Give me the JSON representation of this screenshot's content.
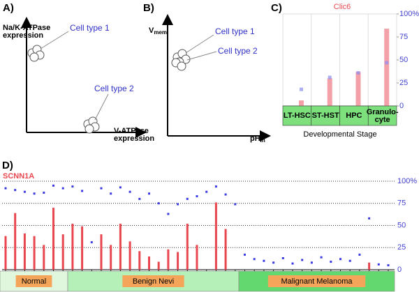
{
  "diagrams": [
    {
      "panel_label": "A)",
      "y_label": "Na/K-ATPase expression",
      "x_label": "V-ATPase expression",
      "cells": [
        "Cell type 1",
        "Cell type 2"
      ]
    },
    {
      "panel_label": "B)",
      "y_label": {
        "base": "V",
        "sub": "mem"
      },
      "x_label": {
        "base": "pH",
        "sub": "in"
      },
      "cells": [
        "Cell type 1",
        "Cell type 2"
      ]
    }
  ],
  "chart_data": [
    {
      "type": "bar",
      "panel_label": "C)",
      "title": "Clic6",
      "x_label": "Developmental Stage",
      "categories": [
        "LT-HSC",
        "ST-HST",
        "HPC",
        "Granulo-\ncyte"
      ],
      "series": [
        {
          "color": "#f4a0a8",
          "values": [
            6,
            30,
            37,
            84
          ]
        },
        {
          "color": "#8c8cf0",
          "values": [
            18,
            31,
            36,
            47
          ]
        }
      ],
      "ylim": [
        0,
        100
      ],
      "yticks": [
        0,
        25,
        50,
        75,
        {
          "value": 100,
          "label": "100%"
        }
      ]
    },
    {
      "type": "bar",
      "panel_label": "D)",
      "title": "SCNN1A",
      "categories": [
        null,
        null,
        null,
        null,
        null,
        null,
        null,
        null,
        null,
        null,
        null,
        null,
        null,
        null,
        null,
        null,
        null,
        null,
        null,
        null,
        null,
        null,
        null,
        null,
        null,
        null,
        null,
        null,
        null,
        null,
        null,
        null,
        null,
        null,
        null,
        null,
        null,
        null,
        null,
        null,
        null
      ],
      "groups": [
        "Normal",
        "Benign Nevi",
        "Malignant Melanoma"
      ],
      "series": [
        {
          "color": "#e8474f",
          "values": [
            38,
            64,
            41,
            38,
            28,
            70,
            40,
            52,
            49,
            0,
            40,
            28,
            52,
            32,
            21,
            15,
            9,
            23,
            20,
            52,
            28,
            0,
            76,
            46,
            0,
            0,
            0,
            0,
            0,
            0,
            0,
            0,
            0,
            0,
            0,
            0,
            0,
            0,
            8,
            0,
            0
          ]
        },
        {
          "color": "#3a3ae0",
          "values": [
            92,
            90,
            88,
            86,
            87,
            95,
            92,
            94,
            89,
            31,
            92,
            86,
            93,
            88,
            80,
            86,
            75,
            63,
            74,
            80,
            83,
            88,
            94,
            85,
            74,
            17,
            12,
            10,
            8,
            13,
            7,
            11,
            8,
            14,
            9,
            12,
            10,
            17,
            58,
            6,
            5
          ]
        }
      ],
      "ylim": [
        0,
        100
      ],
      "yticks": [
        0,
        25,
        50,
        75,
        {
          "value": 100,
          "label": "100%"
        }
      ],
      "grid": true
    }
  ]
}
